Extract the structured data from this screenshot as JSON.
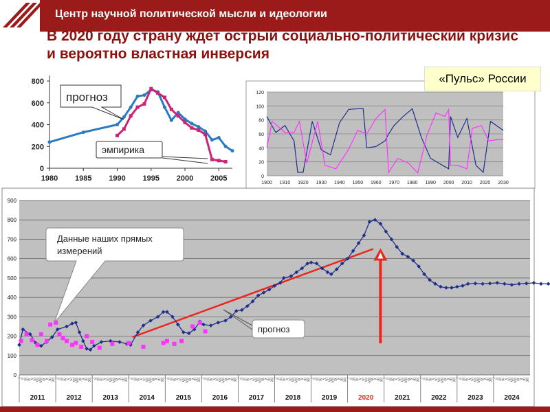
{
  "header": {
    "title": "Центр научной политической мысли и идеологии"
  },
  "slide": {
    "title": "В 2020 году страну ждет острый социально-политический кризис и вероятно властная инверсия",
    "pulse_label": "«Пульс» России"
  },
  "colors": {
    "header_bg": "#9b1a1a",
    "title_text": "#8b1010",
    "main_series": "#1f2e8a",
    "pink_series": "#ff33ff",
    "trend": "#e8281e",
    "arrow": "#e8281e",
    "plot_bg": "#c0c0c0"
  },
  "chart_data": [
    {
      "type": "line",
      "x": [
        1980,
        1985,
        1990,
        1995,
        2000,
        2005
      ],
      "ylim": [
        0,
        800
      ],
      "xlim": [
        1980,
        2007
      ],
      "yticks": [
        0,
        200,
        400,
        600,
        800
      ],
      "xticks": [
        1980,
        1985,
        1990,
        1995,
        2000,
        2005
      ],
      "series": [
        {
          "points": [
            [
              1980,
              240
            ],
            [
              1985,
              330
            ],
            [
              1990,
              400
            ],
            [
              1991,
              470
            ],
            [
              1992,
              560
            ],
            [
              1993,
              660
            ],
            [
              1994,
              670
            ],
            [
              1995,
              720
            ],
            [
              1996,
              700
            ],
            [
              1997,
              560
            ],
            [
              1998,
              440
            ],
            [
              1999,
              510
            ],
            [
              2000,
              450
            ],
            [
              2001,
              410
            ],
            [
              2002,
              380
            ],
            [
              2003,
              340
            ],
            [
              2004,
              260
            ],
            [
              2005,
              280
            ],
            [
              2006,
              200
            ],
            [
              2007,
              160
            ]
          ]
        },
        {
          "points": [
            [
              1990,
              300
            ],
            [
              1991,
              360
            ],
            [
              1992,
              480
            ],
            [
              1993,
              560
            ],
            [
              1994,
              590
            ],
            [
              1995,
              730
            ],
            [
              1996,
              690
            ],
            [
              1997,
              650
            ],
            [
              1998,
              540
            ],
            [
              1999,
              480
            ],
            [
              2000,
              420
            ],
            [
              2001,
              370
            ],
            [
              2002,
              350
            ],
            [
              2003,
              310
            ],
            [
              2004,
              80
            ],
            [
              2005,
              70
            ],
            [
              2006,
              60
            ]
          ]
        }
      ],
      "annotations": [
        "прогноз",
        "эмпирика"
      ]
    },
    {
      "type": "line",
      "xlim": [
        1900,
        2030
      ],
      "ylim": [
        0,
        120
      ],
      "yticks": [
        0,
        20,
        40,
        60,
        80,
        100,
        120
      ],
      "xticks": [
        1900,
        1910,
        1920,
        1930,
        1940,
        1950,
        1960,
        1970,
        1980,
        1990,
        2000,
        2010,
        2020,
        2030
      ],
      "series": [
        {
          "points": [
            [
              1900,
              85
            ],
            [
              1905,
              62
            ],
            [
              1910,
              72
            ],
            [
              1915,
              50
            ],
            [
              1917,
              5
            ],
            [
              1920,
              5
            ],
            [
              1925,
              78
            ],
            [
              1930,
              37
            ],
            [
              1935,
              30
            ],
            [
              1940,
              76
            ],
            [
              1945,
              95
            ],
            [
              1950,
              96
            ],
            [
              1953,
              96
            ],
            [
              1955,
              40
            ],
            [
              1960,
              42
            ],
            [
              1965,
              50
            ],
            [
              1967,
              60
            ],
            [
              1970,
              72
            ],
            [
              1975,
              85
            ],
            [
              1980,
              96
            ],
            [
              1985,
              55
            ],
            [
              1990,
              25
            ],
            [
              2000,
              10
            ],
            [
              2001,
              85
            ],
            [
              2005,
              55
            ],
            [
              2010,
              82
            ],
            [
              2015,
              15
            ],
            [
              2019,
              5
            ],
            [
              2023,
              78
            ],
            [
              2030,
              65
            ]
          ]
        },
        {
          "points": [
            [
              1900,
              40
            ],
            [
              1903,
              78
            ],
            [
              1910,
              62
            ],
            [
              1915,
              62
            ],
            [
              1918,
              78
            ],
            [
              1922,
              18
            ],
            [
              1928,
              78
            ],
            [
              1932,
              15
            ],
            [
              1938,
              10
            ],
            [
              1945,
              38
            ],
            [
              1950,
              65
            ],
            [
              1955,
              60
            ],
            [
              1960,
              82
            ],
            [
              1965,
              95
            ],
            [
              1967,
              5
            ],
            [
              1972,
              25
            ],
            [
              1978,
              18
            ],
            [
              1983,
              4
            ],
            [
              1988,
              58
            ],
            [
              1993,
              90
            ],
            [
              1998,
              85
            ],
            [
              2000,
              95
            ],
            [
              2001,
              15
            ],
            [
              2005,
              15
            ],
            [
              2010,
              10
            ],
            [
              2013,
              68
            ],
            [
              2018,
              72
            ],
            [
              2022,
              50
            ],
            [
              2027,
              52
            ],
            [
              2030,
              52
            ]
          ]
        }
      ]
    },
    {
      "type": "line",
      "ylim": [
        0,
        900
      ],
      "yticks": [
        0,
        100,
        200,
        300,
        400,
        500,
        600,
        700,
        800,
        900
      ],
      "categories": [
        "2011",
        "2012",
        "2013",
        "2014",
        "2015",
        "2016",
        "2017",
        "2018",
        "2019",
        "2020",
        "2021",
        "2022",
        "2023",
        "2024"
      ],
      "series": [
        {
          "points": [
            [
              2010.0,
              155
            ],
            [
              2010.1,
              235
            ],
            [
              2010.3,
              210
            ],
            [
              2010.45,
              165
            ],
            [
              2010.6,
              150
            ],
            [
              2010.75,
              170
            ],
            [
              2010.9,
              195
            ],
            [
              2011.05,
              235
            ],
            [
              2011.3,
              250
            ],
            [
              2011.45,
              265
            ],
            [
              2011.55,
              270
            ],
            [
              2011.65,
              220
            ],
            [
              2011.75,
              175
            ],
            [
              2011.85,
              135
            ],
            [
              2011.95,
              130
            ],
            [
              2012.05,
              150
            ],
            [
              2012.25,
              170
            ],
            [
              2012.5,
              175
            ],
            [
              2012.75,
              170
            ],
            [
              2012.95,
              160
            ],
            [
              2013.05,
              155
            ],
            [
              2013.25,
              220
            ],
            [
              2013.4,
              255
            ],
            [
              2013.6,
              280
            ],
            [
              2013.8,
              300
            ],
            [
              2013.95,
              325
            ],
            [
              2014.05,
              325
            ],
            [
              2014.2,
              300
            ],
            [
              2014.35,
              260
            ],
            [
              2014.5,
              220
            ],
            [
              2014.65,
              215
            ],
            [
              2014.8,
              235
            ],
            [
              2014.95,
              275
            ],
            [
              2015.05,
              260
            ],
            [
              2015.25,
              255
            ],
            [
              2015.45,
              270
            ],
            [
              2015.65,
              280
            ],
            [
              2015.8,
              300
            ],
            [
              2015.95,
              330
            ],
            [
              2016.1,
              335
            ],
            [
              2016.25,
              355
            ],
            [
              2016.4,
              380
            ],
            [
              2016.55,
              410
            ],
            [
              2016.7,
              425
            ],
            [
              2016.85,
              440
            ],
            [
              2017.0,
              460
            ],
            [
              2017.15,
              475
            ],
            [
              2017.25,
              500
            ],
            [
              2017.45,
              510
            ],
            [
              2017.6,
              530
            ],
            [
              2017.75,
              550
            ],
            [
              2017.9,
              575
            ],
            [
              2018.0,
              580
            ],
            [
              2018.15,
              575
            ],
            [
              2018.3,
              550
            ],
            [
              2018.45,
              530
            ],
            [
              2018.55,
              520
            ],
            [
              2018.7,
              545
            ],
            [
              2018.85,
              575
            ],
            [
              2019.0,
              600
            ],
            [
              2019.15,
              640
            ],
            [
              2019.3,
              680
            ],
            [
              2019.45,
              720
            ],
            [
              2019.6,
              790
            ],
            [
              2019.75,
              800
            ],
            [
              2019.9,
              780
            ],
            [
              2020.05,
              740
            ],
            [
              2020.2,
              700
            ],
            [
              2020.35,
              660
            ],
            [
              2020.5,
              625
            ],
            [
              2020.65,
              610
            ],
            [
              2020.8,
              590
            ],
            [
              2020.95,
              560
            ],
            [
              2021.1,
              520
            ],
            [
              2021.25,
              490
            ],
            [
              2021.4,
              470
            ],
            [
              2021.55,
              455
            ],
            [
              2021.7,
              450
            ],
            [
              2021.85,
              450
            ],
            [
              2022.0,
              455
            ],
            [
              2022.15,
              460
            ],
            [
              2022.3,
              470
            ],
            [
              2022.5,
              472
            ],
            [
              2022.7,
              470
            ],
            [
              2022.9,
              472
            ],
            [
              2023.1,
              475
            ],
            [
              2023.3,
              470
            ],
            [
              2023.5,
              465
            ],
            [
              2023.7,
              470
            ],
            [
              2023.9,
              472
            ],
            [
              2024.1,
              475
            ],
            [
              2024.3,
              470
            ],
            [
              2024.5,
              470
            ]
          ]
        },
        {
          "points": [
            [
              2010.05,
              175
            ],
            [
              2010.2,
              210
            ],
            [
              2010.35,
              180
            ],
            [
              2010.5,
              155
            ],
            [
              2010.6,
              210
            ],
            [
              2010.75,
              175
            ],
            [
              2010.85,
              260
            ],
            [
              2011.0,
              270
            ],
            [
              2011.1,
              210
            ],
            [
              2011.2,
              190
            ],
            [
              2011.3,
              175
            ],
            [
              2011.45,
              155
            ],
            [
              2011.55,
              165
            ],
            [
              2011.7,
              145
            ],
            [
              2011.85,
              200
            ],
            [
              2012.0,
              170
            ],
            [
              2012.2,
              140
            ],
            [
              2012.55,
              160
            ],
            [
              2013.0,
              165
            ],
            [
              2013.4,
              145
            ],
            [
              2013.95,
              165
            ],
            [
              2014.05,
              175
            ],
            [
              2014.25,
              160
            ],
            [
              2014.45,
              175
            ],
            [
              2014.75,
              250
            ],
            [
              2014.95,
              270
            ],
            [
              2015.1,
              225
            ]
          ]
        }
      ],
      "trend": [
        [
          2013.1,
          195
        ],
        [
          2019.7,
          650
        ]
      ],
      "annotations": [
        "Данные наших прямых измерений",
        "прогноз"
      ],
      "highlight_year": "2020"
    }
  ]
}
